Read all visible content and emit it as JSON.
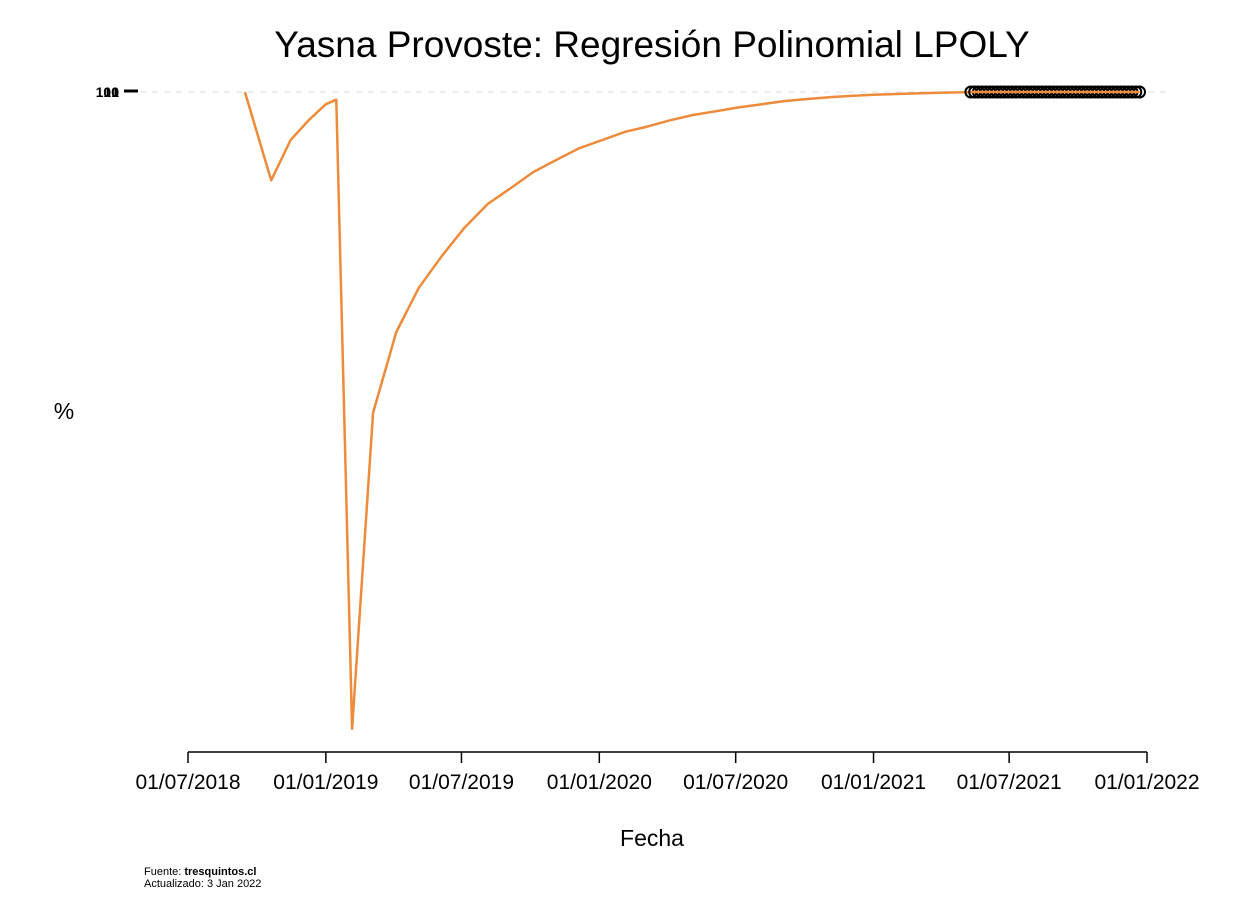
{
  "chart_data": {
    "type": "line",
    "title": "Yasna Provoste: Regresión Polinomial LPOLY",
    "xlabel": "Fecha",
    "ylabel": "%",
    "x_ticks": [
      "01/07/2018",
      "01/01/2019",
      "01/07/2019",
      "01/01/2020",
      "01/07/2020",
      "01/01/2021",
      "01/07/2021",
      "01/01/2022"
    ],
    "x_tick_dates": [
      "2018-07-01",
      "2019-01-01",
      "2019-07-01",
      "2020-01-01",
      "2020-07-01",
      "2021-01-01",
      "2021-07-01",
      "2022-01-01"
    ],
    "xlim": [
      "2018-07-01",
      "2022-01-01"
    ],
    "y_tick_labels": [
      "1",
      "10",
      "100"
    ],
    "ylim": [
      0,
      100
    ],
    "line_color": "#ED8B3A",
    "marker_color": "#000000",
    "series": [
      {
        "type": "line",
        "x": [
          "2018-09-15",
          "2018-10-20",
          "2018-11-15",
          "2018-12-10",
          "2019-01-01",
          "2019-01-15",
          "2019-02-05",
          "2019-03-05",
          "2019-04-05",
          "2019-05-05",
          "2019-06-05",
          "2019-07-05",
          "2019-08-05",
          "2019-09-05",
          "2019-10-05",
          "2019-11-05",
          "2019-12-05",
          "2020-01-05",
          "2020-02-05",
          "2020-03-05",
          "2020-04-05",
          "2020-05-05",
          "2020-06-05",
          "2020-07-05",
          "2020-08-05",
          "2020-09-05",
          "2020-10-05",
          "2020-11-05",
          "2020-12-05",
          "2021-01-05",
          "2021-02-05",
          "2021-03-05",
          "2021-04-05",
          "2021-05-05",
          "2021-06-05",
          "2021-07-05",
          "2021-08-05",
          "2021-09-05",
          "2021-10-05",
          "2021-11-05",
          "2021-12-05"
        ],
        "y": [
          100,
          86.2,
          92.5,
          95.7,
          98.1,
          98.8,
          0.5,
          49.9,
          62.5,
          69.4,
          74.4,
          78.8,
          82.5,
          85.0,
          87.5,
          89.4,
          91.2,
          92.5,
          93.8,
          94.6,
          95.6,
          96.4,
          97.0,
          97.6,
          98.1,
          98.6,
          98.9,
          99.2,
          99.4,
          99.6,
          99.7,
          99.8,
          99.9,
          99.95,
          99.97,
          99.98,
          99.99,
          99.99,
          100,
          100,
          100
        ]
      },
      {
        "type": "scatter",
        "x": [
          "2021-05-11",
          "2021-05-16",
          "2021-05-21",
          "2021-05-26",
          "2021-05-31",
          "2021-06-05",
          "2021-06-10",
          "2021-06-15",
          "2021-06-20",
          "2021-06-25",
          "2021-06-30",
          "2021-07-05",
          "2021-07-10",
          "2021-07-15",
          "2021-07-20",
          "2021-07-25",
          "2021-07-30",
          "2021-08-04",
          "2021-08-09",
          "2021-08-14",
          "2021-08-19",
          "2021-08-24",
          "2021-08-29",
          "2021-09-03",
          "2021-09-08",
          "2021-09-13",
          "2021-09-18",
          "2021-09-23",
          "2021-09-28",
          "2021-10-03",
          "2021-10-08",
          "2021-10-13",
          "2021-10-18",
          "2021-10-23",
          "2021-10-28",
          "2021-11-02",
          "2021-11-07",
          "2021-11-12",
          "2021-11-17",
          "2021-11-22",
          "2021-11-27",
          "2021-12-02",
          "2021-12-07",
          "2021-12-12",
          "2021-12-17",
          "2021-12-22"
        ],
        "y": [
          100,
          100,
          100,
          100,
          100,
          100,
          100,
          100,
          100,
          100,
          100,
          100,
          100,
          100,
          100,
          100,
          100,
          100,
          100,
          100,
          100,
          100,
          100,
          100,
          100,
          100,
          100,
          100,
          100,
          100,
          100,
          100,
          100,
          100,
          100,
          100,
          100,
          100,
          100,
          100,
          100,
          100,
          100,
          100,
          100,
          100
        ]
      }
    ],
    "grid": false,
    "reference_line_y": 100
  },
  "source": {
    "prefix": "Fuente: ",
    "site": "tresquintos.cl",
    "updated": "Actualizado: 3 Jan 2022"
  }
}
